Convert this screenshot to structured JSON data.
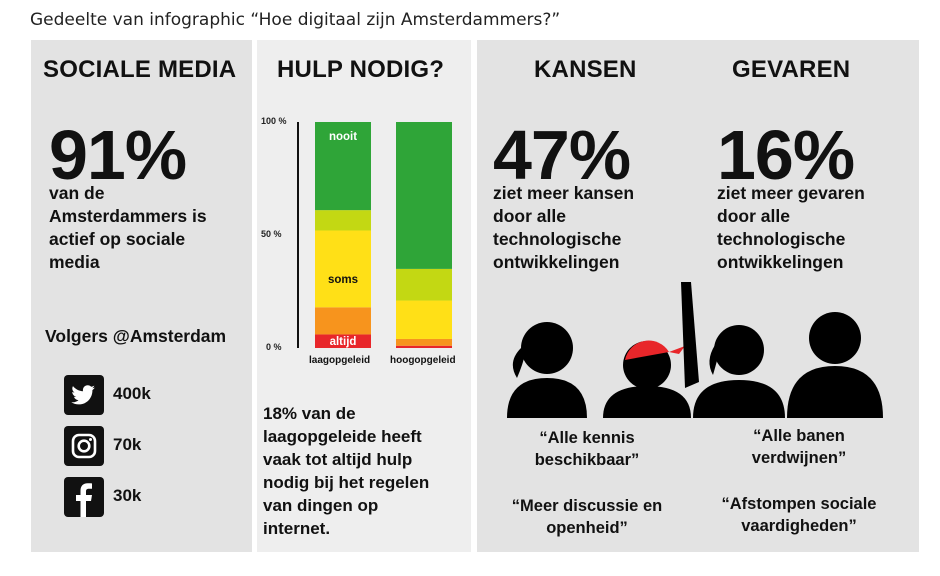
{
  "caption": "Gedeelte van infographic “Hoe digitaal zijn Amsterdammers?”",
  "social": {
    "title": "SOCIALE MEDIA",
    "percent": "91%",
    "lines": [
      "van de",
      "Amsterdammers is",
      "actief op sociale",
      "media"
    ],
    "followers_title": "Volgers @Amsterdam",
    "accounts": [
      {
        "icon": "twitter-icon",
        "value": "400k"
      },
      {
        "icon": "instagram-icon",
        "value": "70k"
      },
      {
        "icon": "facebook-icon",
        "value": "30k"
      }
    ]
  },
  "help": {
    "title": "HULP NODIG?",
    "axis": {
      "top": "100 %",
      "mid": "50 %",
      "bottom": "0 %"
    },
    "bar_labels": {
      "nooit": "nooit",
      "soms": "soms",
      "altijd": "altijd"
    },
    "groups": [
      "laagopgeleid",
      "hoogopgeleid"
    ],
    "lines": [
      "18% van de",
      "laagopgeleide heeft",
      "vaak tot altijd hulp",
      "nodig bij het regelen",
      "van dingen op",
      "internet."
    ]
  },
  "chart_data": {
    "type": "bar",
    "stacked": true,
    "categories": [
      "laagopgeleid",
      "hoogopgeleid"
    ],
    "ylim": [
      0,
      100
    ],
    "yticks": [
      "0 %",
      "50 %",
      "100 %"
    ],
    "series": [
      {
        "name": "altijd",
        "values": [
          6,
          1
        ],
        "color": "#e8262a"
      },
      {
        "name": "",
        "values": [
          12,
          3
        ],
        "color": "#f7941d"
      },
      {
        "name": "soms",
        "values": [
          34,
          17
        ],
        "color": "#ffe017"
      },
      {
        "name": "",
        "values": [
          9,
          14
        ],
        "color": "#c3d813"
      },
      {
        "name": "nooit",
        "values": [
          39,
          65
        ],
        "color": "#2fa538"
      }
    ]
  },
  "risk": {
    "left_title": "KANSEN",
    "right_title": "GEVAREN",
    "left_percent": "47%",
    "right_percent": "16%",
    "left_lines": [
      "ziet meer kansen",
      "door alle",
      "technologische",
      "ontwikkelingen"
    ],
    "right_lines": [
      "ziet meer gevaren",
      "door alle",
      "technologische",
      "ontwikkelingen"
    ],
    "left_quotes": [
      [
        "“Alle kennis",
        "beschikbaar”"
      ],
      [
        "“Meer discussie en",
        "openheid”"
      ]
    ],
    "right_quotes": [
      [
        "“Alle banen",
        "verdwijnen”"
      ],
      [
        "“Afstompen sociale",
        "vaardigheden”"
      ]
    ]
  },
  "colors": {
    "panel": "#e3e3e3",
    "panel_light": "#eeeeee",
    "text": "#111111",
    "cap_red": "#e8262a"
  }
}
